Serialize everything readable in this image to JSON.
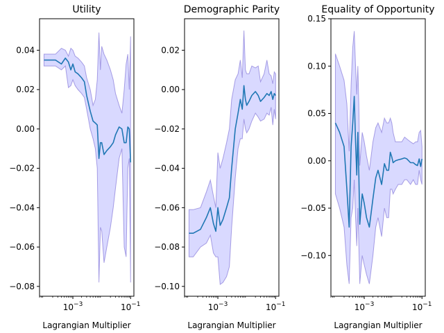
{
  "chart_data": [
    {
      "type": "line",
      "title": "Utility",
      "xlabel": "Lagrangian Multiplier",
      "ylabel": "",
      "xscale": "log",
      "xlim": [
        7e-05,
        0.13
      ],
      "ylim": [
        -0.085,
        0.056
      ],
      "xticks": [
        {
          "value": 0.001,
          "label": "10^-3"
        },
        {
          "value": 0.1,
          "label": "10^-1"
        }
      ],
      "yticks": [
        {
          "value": 0.04,
          "label": "0.04"
        },
        {
          "value": 0.02,
          "label": "0.02"
        },
        {
          "value": 0.0,
          "label": "0.00"
        },
        {
          "value": -0.02,
          "label": "−0.02"
        },
        {
          "value": -0.04,
          "label": "−0.04"
        },
        {
          "value": -0.06,
          "label": "−0.06"
        },
        {
          "value": -0.08,
          "label": "−0.08"
        }
      ],
      "x": [
        0.0001,
        0.00014,
        0.00025,
        0.0004,
        0.00055,
        0.0007,
        0.00085,
        0.001,
        0.0012,
        0.0015,
        0.002,
        0.0025,
        0.003,
        0.004,
        0.005,
        0.006,
        0.007,
        0.008,
        0.009,
        0.01,
        0.012,
        0.015,
        0.02,
        0.025,
        0.03,
        0.04,
        0.05,
        0.06,
        0.07,
        0.08,
        0.09,
        0.1
      ],
      "series": [
        {
          "values": [
            0.035,
            0.035,
            0.035,
            0.033,
            0.036,
            0.034,
            0.03,
            0.033,
            0.029,
            0.028,
            0.026,
            0.024,
            0.017,
            0.009,
            0.004,
            0.003,
            0.002,
            -0.015,
            -0.007,
            -0.007,
            -0.013,
            -0.011,
            -0.009,
            -0.007,
            -0.003,
            0.001,
            0.0,
            -0.007,
            -0.007,
            0.001,
            0.0,
            -0.017
          ],
          "lower": [
            0.032,
            0.032,
            0.032,
            0.03,
            0.032,
            0.021,
            0.022,
            0.025,
            0.022,
            0.02,
            0.018,
            0.016,
            0.01,
            0.0,
            -0.005,
            -0.01,
            -0.02,
            -0.078,
            -0.05,
            -0.052,
            -0.068,
            -0.06,
            -0.05,
            -0.04,
            -0.03,
            -0.015,
            -0.01,
            -0.06,
            -0.065,
            -0.02,
            -0.015,
            -0.078
          ],
          "upper": [
            0.038,
            0.038,
            0.038,
            0.041,
            0.04,
            0.037,
            0.041,
            0.04,
            0.037,
            0.036,
            0.034,
            0.032,
            0.026,
            0.02,
            0.012,
            0.015,
            0.025,
            0.049,
            0.03,
            0.042,
            0.038,
            0.035,
            0.03,
            0.025,
            0.018,
            0.012,
            0.008,
            0.02,
            0.033,
            0.038,
            0.02,
            0.047
          ]
        }
      ]
    },
    {
      "type": "line",
      "title": "Demographic Parity",
      "xlabel": "Lagrangian Multiplier",
      "ylabel": "",
      "xscale": "log",
      "xlim": [
        7e-05,
        0.13
      ],
      "ylim": [
        -0.105,
        0.036
      ],
      "xticks": [
        {
          "value": 0.001,
          "label": "10^-3"
        },
        {
          "value": 0.1,
          "label": "10^-1"
        }
      ],
      "yticks": [
        {
          "value": 0.02,
          "label": "0.02"
        },
        {
          "value": 0.0,
          "label": "0.00"
        },
        {
          "value": -0.02,
          "label": "−0.02"
        },
        {
          "value": -0.04,
          "label": "−0.04"
        },
        {
          "value": -0.06,
          "label": "−0.06"
        },
        {
          "value": -0.08,
          "label": "−0.08"
        },
        {
          "value": -0.1,
          "label": "−0.10"
        }
      ],
      "x": [
        0.0001,
        0.00014,
        0.00025,
        0.0004,
        0.00055,
        0.0007,
        0.00085,
        0.001,
        0.0012,
        0.0015,
        0.002,
        0.0025,
        0.003,
        0.004,
        0.005,
        0.006,
        0.007,
        0.008,
        0.009,
        0.01,
        0.012,
        0.015,
        0.02,
        0.025,
        0.03,
        0.04,
        0.05,
        0.06,
        0.07,
        0.08,
        0.09,
        0.1
      ],
      "series": [
        {
          "values": [
            -0.073,
            -0.073,
            -0.071,
            -0.065,
            -0.06,
            -0.068,
            -0.072,
            -0.06,
            -0.069,
            -0.066,
            -0.06,
            -0.055,
            -0.04,
            -0.02,
            -0.012,
            -0.005,
            -0.01,
            0.002,
            -0.005,
            -0.008,
            -0.006,
            -0.003,
            -0.001,
            -0.003,
            -0.006,
            -0.004,
            -0.002,
            -0.003,
            -0.001,
            -0.005,
            -0.002,
            -0.003
          ],
          "lower": [
            -0.085,
            -0.085,
            -0.08,
            -0.078,
            -0.074,
            -0.083,
            -0.085,
            -0.085,
            -0.099,
            -0.098,
            -0.095,
            -0.09,
            -0.07,
            -0.045,
            -0.03,
            -0.025,
            -0.025,
            -0.015,
            -0.02,
            -0.022,
            -0.02,
            -0.016,
            -0.012,
            -0.014,
            -0.016,
            -0.015,
            -0.012,
            -0.013,
            -0.009,
            -0.018,
            -0.01,
            -0.015
          ],
          "upper": [
            -0.061,
            -0.061,
            -0.06,
            -0.052,
            -0.046,
            -0.054,
            -0.06,
            -0.032,
            -0.04,
            -0.035,
            -0.027,
            -0.02,
            -0.005,
            0.005,
            0.008,
            0.015,
            0.006,
            0.03,
            0.01,
            0.008,
            0.008,
            0.012,
            0.011,
            0.012,
            0.004,
            0.008,
            0.015,
            0.008,
            0.007,
            0.003,
            0.009,
            0.008
          ]
        }
      ]
    },
    {
      "type": "line",
      "title": "Equality of Opportunity",
      "xlabel": "Lagrangian Multiplier",
      "ylabel": "",
      "xscale": "log",
      "xlim": [
        7e-05,
        0.13
      ],
      "ylim": [
        -0.143,
        0.15
      ],
      "xticks": [
        {
          "value": 0.001,
          "label": "10^-3"
        },
        {
          "value": 0.1,
          "label": "10^-1"
        }
      ],
      "yticks": [
        {
          "value": 0.15,
          "label": "0.15"
        },
        {
          "value": 0.1,
          "label": "0.10"
        },
        {
          "value": 0.05,
          "label": "0.05"
        },
        {
          "value": 0.0,
          "label": "0.00"
        },
        {
          "value": -0.05,
          "label": "−0.05"
        },
        {
          "value": -0.1,
          "label": "−0.10"
        }
      ],
      "x": [
        0.0001,
        0.00014,
        0.0002,
        0.00025,
        0.0003,
        0.00035,
        0.0004,
        0.00045,
        0.0005,
        0.00055,
        0.0006,
        0.00065,
        0.0007,
        0.00085,
        0.001,
        0.0012,
        0.0015,
        0.002,
        0.0025,
        0.003,
        0.004,
        0.005,
        0.006,
        0.007,
        0.008,
        0.009,
        0.01,
        0.012,
        0.015,
        0.02,
        0.025,
        0.03,
        0.04,
        0.05,
        0.06,
        0.07,
        0.08,
        0.09,
        0.1
      ],
      "series": [
        {
          "values": [
            0.04,
            0.03,
            0.015,
            -0.03,
            -0.07,
            0.015,
            0.04,
            0.068,
            0.02,
            -0.015,
            0.03,
            -0.015,
            -0.067,
            -0.035,
            -0.045,
            -0.06,
            -0.07,
            -0.04,
            -0.018,
            -0.01,
            -0.025,
            -0.003,
            -0.01,
            -0.01,
            0.009,
            0.004,
            -0.002,
            0.0,
            0.001,
            0.002,
            0.003,
            0.002,
            -0.002,
            -0.002,
            -0.004,
            -0.005,
            0.002,
            -0.006,
            0.002
          ],
          "lower": [
            -0.035,
            -0.05,
            -0.07,
            -0.11,
            -0.13,
            -0.06,
            -0.05,
            -0.02,
            -0.06,
            -0.09,
            -0.05,
            -0.09,
            -0.13,
            -0.1,
            -0.11,
            -0.12,
            -0.13,
            -0.1,
            -0.07,
            -0.06,
            -0.08,
            -0.05,
            -0.06,
            -0.06,
            -0.03,
            -0.03,
            -0.035,
            -0.03,
            -0.025,
            -0.025,
            -0.02,
            -0.02,
            -0.025,
            -0.02,
            -0.025,
            -0.025,
            -0.01,
            -0.02,
            -0.025
          ],
          "upper": [
            0.113,
            0.1,
            0.085,
            0.06,
            0.01,
            0.08,
            0.12,
            0.137,
            0.1,
            0.07,
            0.1,
            0.06,
            -0.005,
            0.03,
            0.02,
            0.005,
            -0.01,
            0.02,
            0.035,
            0.04,
            0.03,
            0.045,
            0.04,
            0.04,
            0.045,
            0.04,
            0.03,
            0.02,
            0.02,
            0.02,
            0.025,
            0.023,
            0.02,
            0.018,
            0.02,
            0.02,
            0.03,
            0.032,
            0.015
          ]
        }
      ]
    }
  ],
  "style": {
    "line_color": "#1f77b4",
    "band_fill": "#0000ff",
    "band_edge": "#6a5acd"
  }
}
